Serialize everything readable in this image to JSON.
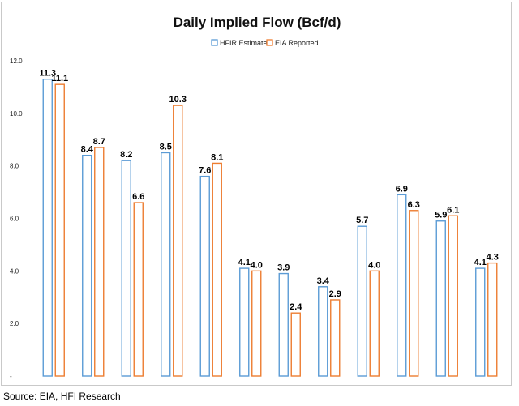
{
  "chart_data": {
    "type": "bar",
    "title": "Daily Implied Flow (Bcf/d)",
    "xlabel": "",
    "ylabel": "",
    "categories": [
      "",
      "",
      "",
      "",
      "",
      "",
      "",
      "",
      "",
      "",
      "",
      ""
    ],
    "series": [
      {
        "name": "HFIR Estimate",
        "color": "#5b9bd5",
        "values": [
          11.3,
          8.4,
          8.2,
          8.5,
          7.6,
          4.1,
          3.9,
          3.4,
          5.7,
          6.9,
          5.9,
          4.1
        ]
      },
      {
        "name": "EIA Reported",
        "color": "#ed7d31",
        "values": [
          11.1,
          8.7,
          6.6,
          10.3,
          8.1,
          4.0,
          2.4,
          2.9,
          4.0,
          6.3,
          6.1,
          4.3
        ]
      }
    ],
    "ylim": [
      0,
      12
    ],
    "yticks": [
      "-",
      "2.0",
      "4.0",
      "6.0",
      "8.0",
      "10.0",
      "12.0"
    ],
    "grid": false,
    "legend_position": "top-center"
  },
  "source": "Source: EIA, HFI Research"
}
